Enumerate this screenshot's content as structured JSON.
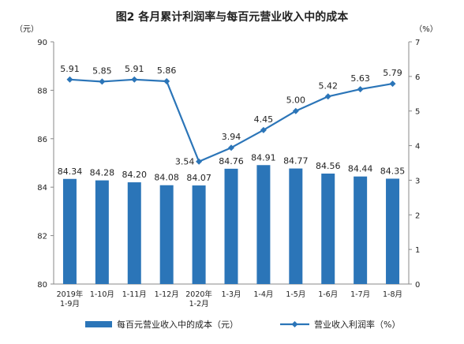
{
  "chart_data": {
    "type": "bar",
    "title": "图2  各月累计利润率与每百元营业收入中的成本",
    "left_unit": "（元）",
    "right_unit": "（%）",
    "categories": [
      [
        "2019年",
        "1-9月"
      ],
      [
        "1-10月"
      ],
      [
        "1-11月"
      ],
      [
        "1-12月"
      ],
      [
        "2020年",
        "1-2月"
      ],
      [
        "1-3月"
      ],
      [
        "1-4月"
      ],
      [
        "1-5月"
      ],
      [
        "1-6月"
      ],
      [
        "1-7月"
      ],
      [
        "1-8月"
      ]
    ],
    "ylim_left": [
      80,
      90
    ],
    "yticks_left": [
      "80",
      "82",
      "84",
      "86",
      "88",
      "90"
    ],
    "ylim_right": [
      0,
      7
    ],
    "yticks_right": [
      "0",
      "1",
      "2",
      "3",
      "4",
      "5",
      "6",
      "7"
    ],
    "grid": false,
    "legend_position": "bottom",
    "series": [
      {
        "name": "每百元营业收入中的成本（元）",
        "type": "bar",
        "axis": "left",
        "color": "#2b75b8",
        "values": [
          84.34,
          84.28,
          84.2,
          84.08,
          84.07,
          84.76,
          84.91,
          84.77,
          84.56,
          84.44,
          84.35
        ],
        "labels": [
          "84.34",
          "84.28",
          "84.20",
          "84.08",
          "84.07",
          "84.76",
          "84.91",
          "84.77",
          "84.56",
          "84.44",
          "84.35"
        ]
      },
      {
        "name": "营业收入利润率（%）",
        "type": "line",
        "axis": "right",
        "color": "#2b75b8",
        "values": [
          5.91,
          5.85,
          5.91,
          5.86,
          3.54,
          3.94,
          4.45,
          5.0,
          5.42,
          5.63,
          5.79
        ],
        "labels": [
          "5.91",
          "5.85",
          "5.91",
          "5.86",
          "3.54",
          "3.94",
          "4.45",
          "5.00",
          "5.42",
          "5.63",
          "5.79"
        ]
      }
    ]
  }
}
